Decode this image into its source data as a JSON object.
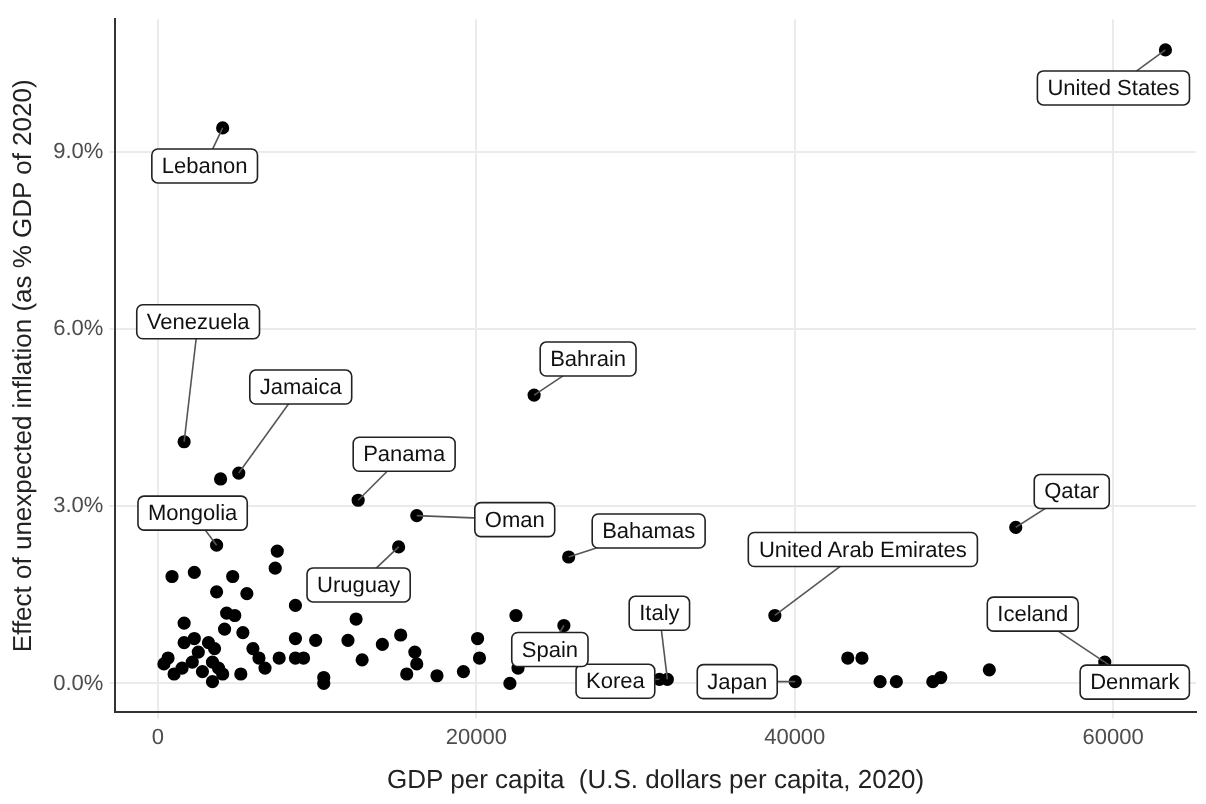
{
  "chart_data": {
    "type": "scatter",
    "xlabel": "GDP per capita  (U.S. dollars per capita, 2020)",
    "ylabel": "Effect of unexpected inflation (as % GDP of 2020)",
    "x": [
      63280,
      4070,
      1650,
      5080,
      3940,
      12580,
      16260,
      15120,
      25800,
      23630,
      38750,
      53880,
      59470,
      40030,
      32000,
      31500,
      25500,
      3690,
      43330,
      44220,
      45360,
      46380,
      48670,
      49170,
      52220,
      7500,
      7370,
      890,
      2290,
      4700,
      3690,
      5590,
      8640,
      4320,
      4830,
      1650,
      12450,
      22490,
      20080,
      20200,
      22110,
      22620,
      17530,
      19190,
      16140,
      16260,
      15630,
      15250,
      14100,
      12830,
      11940,
      9910,
      8640,
      8640,
      9150,
      7620,
      6730,
      5210,
      5970,
      6350,
      4190,
      5340,
      2290,
      1650,
      3180,
      3560,
      2540,
      3430,
      2160,
      640,
      1020,
      1520,
      2800,
      3810,
      4070,
      3430,
      10420,
      10420,
      380
    ],
    "series": [
      {
        "color": "#000000",
        "values": [
          10.72,
          9.4,
          4.09,
          3.56,
          3.46,
          3.1,
          2.84,
          2.31,
          2.14,
          4.88,
          1.15,
          2.64,
          0.36,
          0.03,
          0.07,
          0.07,
          0.98,
          2.34,
          0.43,
          0.43,
          0.03,
          0.03,
          0.03,
          0.1,
          0.23,
          2.24,
          1.95,
          1.81,
          1.88,
          1.81,
          1.55,
          1.52,
          1.32,
          1.19,
          1.15,
          1.02,
          1.09,
          1.15,
          0.76,
          0.43,
          0.0,
          0.26,
          0.13,
          0.2,
          0.53,
          0.33,
          0.16,
          0.82,
          0.66,
          0.4,
          0.73,
          0.73,
          0.76,
          0.43,
          0.43,
          0.43,
          0.26,
          0.16,
          0.59,
          0.43,
          0.92,
          0.86,
          0.76,
          0.69,
          0.69,
          0.59,
          0.53,
          0.36,
          0.36,
          0.43,
          0.16,
          0.26,
          0.2,
          0.26,
          0.16,
          0.03,
          0.1,
          0.0,
          0.33
        ]
      }
    ],
    "xlim": [
      -2670,
      65200
    ],
    "ylim": [
      -0.49,
      11.24
    ],
    "xticks": [
      0,
      20000,
      40000,
      60000
    ],
    "yticks": [
      {
        "value": 0,
        "label": "0.0%"
      },
      {
        "value": 3,
        "label": "3.0%"
      },
      {
        "value": 6,
        "label": "6.0%"
      },
      {
        "value": 9,
        "label": "9.0%"
      }
    ],
    "grid": true,
    "marker": "circle",
    "legend": false,
    "annotations": [
      {
        "text": "United States",
        "x": 63280,
        "y": 10.72
      },
      {
        "text": "Lebanon",
        "x": 4070,
        "y": 9.4
      },
      {
        "text": "Venezuela",
        "x": 1650,
        "y": 4.09
      },
      {
        "text": "Jamaica",
        "x": 5080,
        "y": 3.56
      },
      {
        "text": "Panama",
        "x": 12580,
        "y": 3.1
      },
      {
        "text": "Oman",
        "x": 16260,
        "y": 2.84
      },
      {
        "text": "Bahamas",
        "x": 25800,
        "y": 2.14
      },
      {
        "text": "Bahrain",
        "x": 23630,
        "y": 4.88
      },
      {
        "text": "United Arab Emirates",
        "x": 38750,
        "y": 1.15
      },
      {
        "text": "Qatar",
        "x": 53880,
        "y": 2.64
      },
      {
        "text": "Iceland",
        "x": 59470,
        "y": 0.36
      },
      {
        "text": "Denmark",
        "x": 59470,
        "y": 0.36
      },
      {
        "text": "Japan",
        "x": 40030,
        "y": 0.03
      },
      {
        "text": "Italy",
        "x": 32000,
        "y": 0.07
      },
      {
        "text": "Korea",
        "x": 31500,
        "y": 0.07
      },
      {
        "text": "Spain",
        "x": 25500,
        "y": 0.98
      },
      {
        "text": "Mongolia",
        "x": 3690,
        "y": 2.34
      },
      {
        "text": "Uruguay",
        "x": 15120,
        "y": 2.31
      }
    ]
  }
}
